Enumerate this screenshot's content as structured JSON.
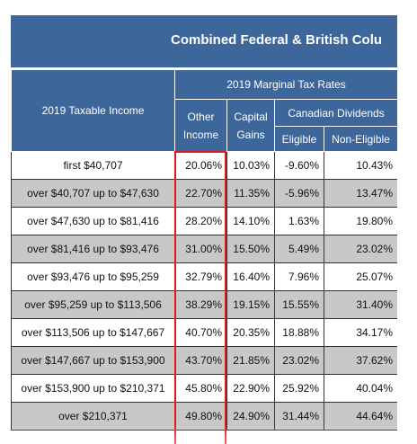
{
  "title": "Combined Federal & British Colu",
  "headers": {
    "taxable_income": "2019 Taxable Income",
    "marginal_rates": "2019 Marginal Tax Rates",
    "other_income_1": "Other",
    "other_income_2": "Income",
    "capital_gains_1": "Capital",
    "capital_gains_2": "Gains",
    "canadian_dividends": "Canadian Dividends",
    "eligible": "Eligible",
    "non_eligible": "Non-Eligible"
  },
  "rows": [
    {
      "bracket": "first $40,707",
      "other": "20.06%",
      "capital": "10.03%",
      "eligible": "-9.60%",
      "non_eligible": "10.43%"
    },
    {
      "bracket": "over $40,707 up to $47,630",
      "other": "22.70%",
      "capital": "11.35%",
      "eligible": "-5.96%",
      "non_eligible": "13.47%"
    },
    {
      "bracket": "over $47,630 up to $81,416",
      "other": "28.20%",
      "capital": "14.10%",
      "eligible": "1.63%",
      "non_eligible": "19.80%"
    },
    {
      "bracket": "over $81,416 up to $93,476",
      "other": "31.00%",
      "capital": "15.50%",
      "eligible": "5.49%",
      "non_eligible": "23.02%"
    },
    {
      "bracket": "over $93,476 up to $95,259",
      "other": "32.79%",
      "capital": "16.40%",
      "eligible": "7.96%",
      "non_eligible": "25.07%"
    },
    {
      "bracket": "over $95,259 up to $113,506",
      "other": "38.29%",
      "capital": "19.15%",
      "eligible": "15.55%",
      "non_eligible": "31.40%"
    },
    {
      "bracket": "over $113,506 up to $147,667",
      "other": "40.70%",
      "capital": "20.35%",
      "eligible": "18.88%",
      "non_eligible": "34.17%"
    },
    {
      "bracket": "over $147,667 up to $153,900",
      "other": "43.70%",
      "capital": "21.85%",
      "eligible": "23.02%",
      "non_eligible": "37.62%"
    },
    {
      "bracket": "over $153,900 up to $210,371",
      "other": "45.80%",
      "capital": "22.90%",
      "eligible": "25.92%",
      "non_eligible": "40.04%"
    },
    {
      "bracket": "over $210,371",
      "other": "49.80%",
      "capital": "24.90%",
      "eligible": "31.44%",
      "non_eligible": "44.64%"
    }
  ],
  "colors": {
    "header_bg": "#3d669b",
    "shaded_row": "#c8c8c8",
    "highlight_border": "#e0191c"
  }
}
